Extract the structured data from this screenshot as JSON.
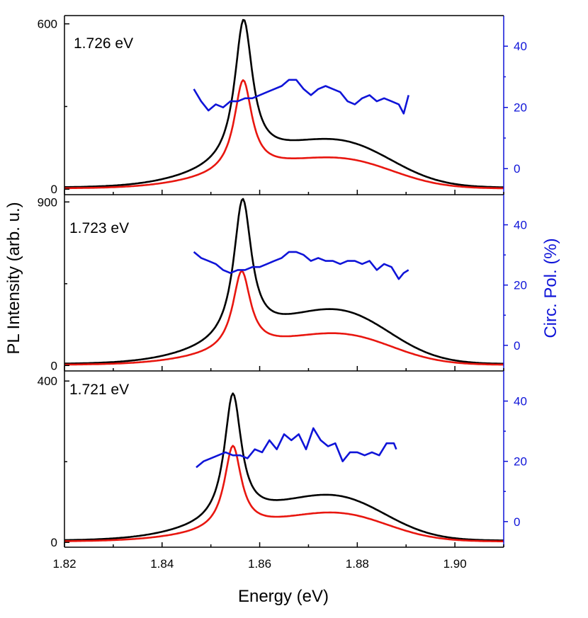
{
  "chart_data": {
    "type": "line",
    "xlabel": "Energy (eV)",
    "ylabel_left": "PL Intensity (arb. u.)",
    "ylabel_right": "Circ. Pol. (%)",
    "xlim": [
      1.82,
      1.91
    ],
    "x_ticks": [
      "1.82",
      "1.84",
      "1.86",
      "1.88",
      "1.90"
    ],
    "colors": {
      "black_series": "#000000",
      "red_series": "#e8160f",
      "pol_series": "#0f14d8",
      "right_axis": "#0f14d8"
    },
    "panels": [
      {
        "label": "1.726 eV",
        "ylim_left": [
          -20,
          630
        ],
        "left_ticks": [
          "600",
          "0"
        ],
        "left_tick_values": [
          600,
          0
        ],
        "ylim_right": [
          -8.5,
          50
        ],
        "right_ticks": [
          "40",
          "20",
          "0"
        ],
        "right_tick_values": [
          40,
          20,
          0
        ],
        "series": [
          {
            "color": "black",
            "peak1_pos": 1.8567,
            "peak1_amp": 510,
            "peak1_w": 0.0022,
            "peak2_pos": 1.8793,
            "peak2_amp": 100,
            "peak2_w": 0.0095,
            "bg_amp": 110,
            "bg_w": 0.0135,
            "bg_pos": 1.864,
            "base": 5
          },
          {
            "color": "red",
            "peak1_pos": 1.8566,
            "peak1_amp": 330,
            "peak1_w": 0.0022,
            "peak2_pos": 1.8795,
            "peak2_amp": 65,
            "peak2_w": 0.0095,
            "bg_amp": 70,
            "bg_w": 0.0135,
            "bg_pos": 1.864,
            "base": 2
          }
        ],
        "pol": {
          "x": [
            1.8465,
            1.848,
            1.8495,
            1.851,
            1.8525,
            1.854,
            1.8555,
            1.857,
            1.8585,
            1.86,
            1.8615,
            1.863,
            1.8645,
            1.866,
            1.8675,
            1.869,
            1.8705,
            1.872,
            1.8735,
            1.875,
            1.8765,
            1.878,
            1.8795,
            1.881,
            1.8825,
            1.884,
            1.8855,
            1.887,
            1.8885,
            1.8895,
            1.8905
          ],
          "y": [
            26,
            22,
            19,
            21,
            20,
            22,
            22,
            23,
            23,
            24,
            25,
            26,
            27,
            29,
            29,
            26,
            24,
            26,
            27,
            26,
            25,
            22,
            21,
            23,
            24,
            22,
            23,
            22,
            21,
            18,
            24
          ]
        }
      },
      {
        "label": "1.723 eV",
        "ylim_left": [
          -30,
          940
        ],
        "left_ticks": [
          "900",
          "0"
        ],
        "left_tick_values": [
          900,
          0
        ],
        "ylim_right": [
          -8.5,
          50
        ],
        "right_ticks": [
          "40",
          "20",
          "0"
        ],
        "right_tick_values": [
          40,
          20,
          0
        ],
        "series": [
          {
            "color": "black",
            "peak1_pos": 1.8565,
            "peak1_amp": 760,
            "peak1_w": 0.0022,
            "peak2_pos": 1.8785,
            "peak2_amp": 190,
            "peak2_w": 0.0095,
            "bg_amp": 160,
            "bg_w": 0.0135,
            "bg_pos": 1.864,
            "base": 7
          },
          {
            "color": "red",
            "peak1_pos": 1.8563,
            "peak1_amp": 430,
            "peak1_w": 0.0022,
            "peak2_pos": 1.879,
            "peak2_amp": 110,
            "peak2_w": 0.0095,
            "bg_amp": 95,
            "bg_w": 0.0135,
            "bg_pos": 1.864,
            "base": 3
          }
        ],
        "pol": {
          "x": [
            1.8465,
            1.848,
            1.8495,
            1.851,
            1.8525,
            1.854,
            1.8555,
            1.857,
            1.8585,
            1.86,
            1.8615,
            1.863,
            1.8645,
            1.866,
            1.8675,
            1.869,
            1.8705,
            1.872,
            1.8735,
            1.875,
            1.8765,
            1.878,
            1.8795,
            1.881,
            1.8825,
            1.884,
            1.8855,
            1.887,
            1.8885,
            1.8895,
            1.8905
          ],
          "y": [
            31,
            29,
            28,
            27,
            25,
            24,
            25,
            25,
            26,
            26,
            27,
            28,
            29,
            31,
            31,
            30,
            28,
            29,
            28,
            28,
            27,
            28,
            28,
            27,
            28,
            25,
            27,
            26,
            22,
            24,
            25
          ]
        }
      },
      {
        "label": "1.721 eV",
        "ylim_left": [
          -12,
          425
        ],
        "left_ticks": [
          "400",
          "0"
        ],
        "left_tick_values": [
          400,
          0
        ],
        "ylim_right": [
          -8.5,
          50
        ],
        "right_ticks": [
          "40",
          "20",
          "0"
        ],
        "right_tick_values": [
          40,
          20,
          0
        ],
        "series": [
          {
            "color": "black",
            "peak1_pos": 1.8545,
            "peak1_amp": 310,
            "peak1_w": 0.0021,
            "peak2_pos": 1.8775,
            "peak2_amp": 75,
            "peak2_w": 0.0095,
            "bg_amp": 60,
            "bg_w": 0.0135,
            "bg_pos": 1.862,
            "base": 4
          },
          {
            "color": "red",
            "peak1_pos": 1.8545,
            "peak1_amp": 205,
            "peak1_w": 0.0021,
            "peak2_pos": 1.8778,
            "peak2_amp": 50,
            "peak2_w": 0.0095,
            "bg_amp": 35,
            "bg_w": 0.0135,
            "bg_pos": 1.862,
            "base": 2
          }
        ],
        "pol": {
          "x": [
            1.847,
            1.8485,
            1.85,
            1.8515,
            1.853,
            1.8545,
            1.856,
            1.8575,
            1.859,
            1.8605,
            1.862,
            1.8635,
            1.865,
            1.8665,
            1.868,
            1.8695,
            1.871,
            1.8725,
            1.874,
            1.8755,
            1.877,
            1.8785,
            1.88,
            1.8815,
            1.883,
            1.8845,
            1.886,
            1.8875,
            1.888
          ],
          "y": [
            18,
            20,
            21,
            22,
            23,
            22,
            22,
            21,
            24,
            23,
            27,
            24,
            29,
            27,
            29,
            24,
            31,
            27,
            25,
            26,
            20,
            23,
            23,
            22,
            23,
            22,
            26,
            26,
            24
          ]
        }
      }
    ]
  }
}
